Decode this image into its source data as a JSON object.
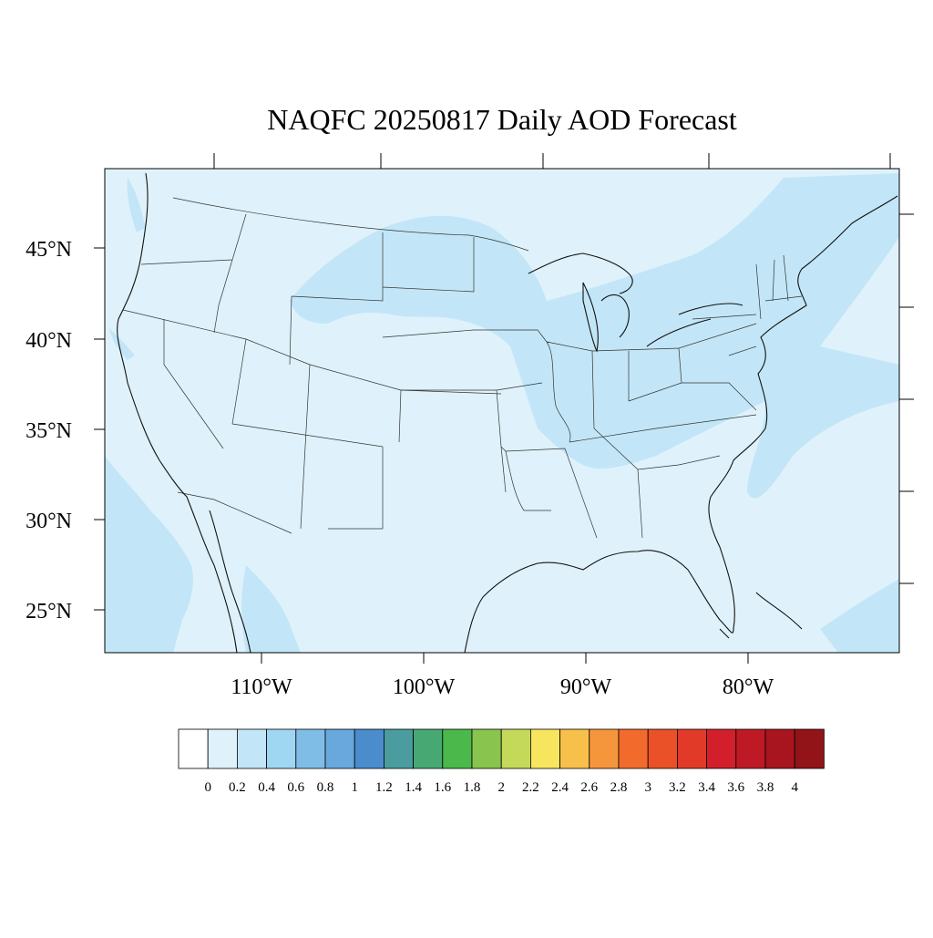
{
  "title": "NAQFC 20250817 Daily AOD Forecast",
  "map": {
    "background_color": "#dff2fb",
    "plume_color": "#c2e6f7",
    "lat_labels": [
      "45°N",
      "40°N",
      "35°N",
      "30°N",
      "25°N"
    ],
    "lon_labels": [
      "110°W",
      "100°W",
      "90°W",
      "80°W"
    ]
  },
  "colorbar": {
    "labels": [
      "0",
      "0.2",
      "0.4",
      "0.6",
      "0.8",
      "1",
      "1.2",
      "1.4",
      "1.6",
      "1.8",
      "2",
      "2.2",
      "2.4",
      "2.6",
      "2.8",
      "3",
      "3.2",
      "3.4",
      "3.6",
      "3.8",
      "4"
    ],
    "colors": [
      "#ffffff",
      "#dff2fb",
      "#c2e6f7",
      "#9fd7f3",
      "#80bde6",
      "#68a8dc",
      "#4a8ccc",
      "#4a9c9f",
      "#48a873",
      "#4ab84a",
      "#88c44e",
      "#c4d95a",
      "#f8e55e",
      "#f7c04a",
      "#f6963c",
      "#f26a2c",
      "#ea5128",
      "#e13a28",
      "#d31f2b",
      "#be1a25",
      "#a8151e",
      "#921419"
    ]
  }
}
